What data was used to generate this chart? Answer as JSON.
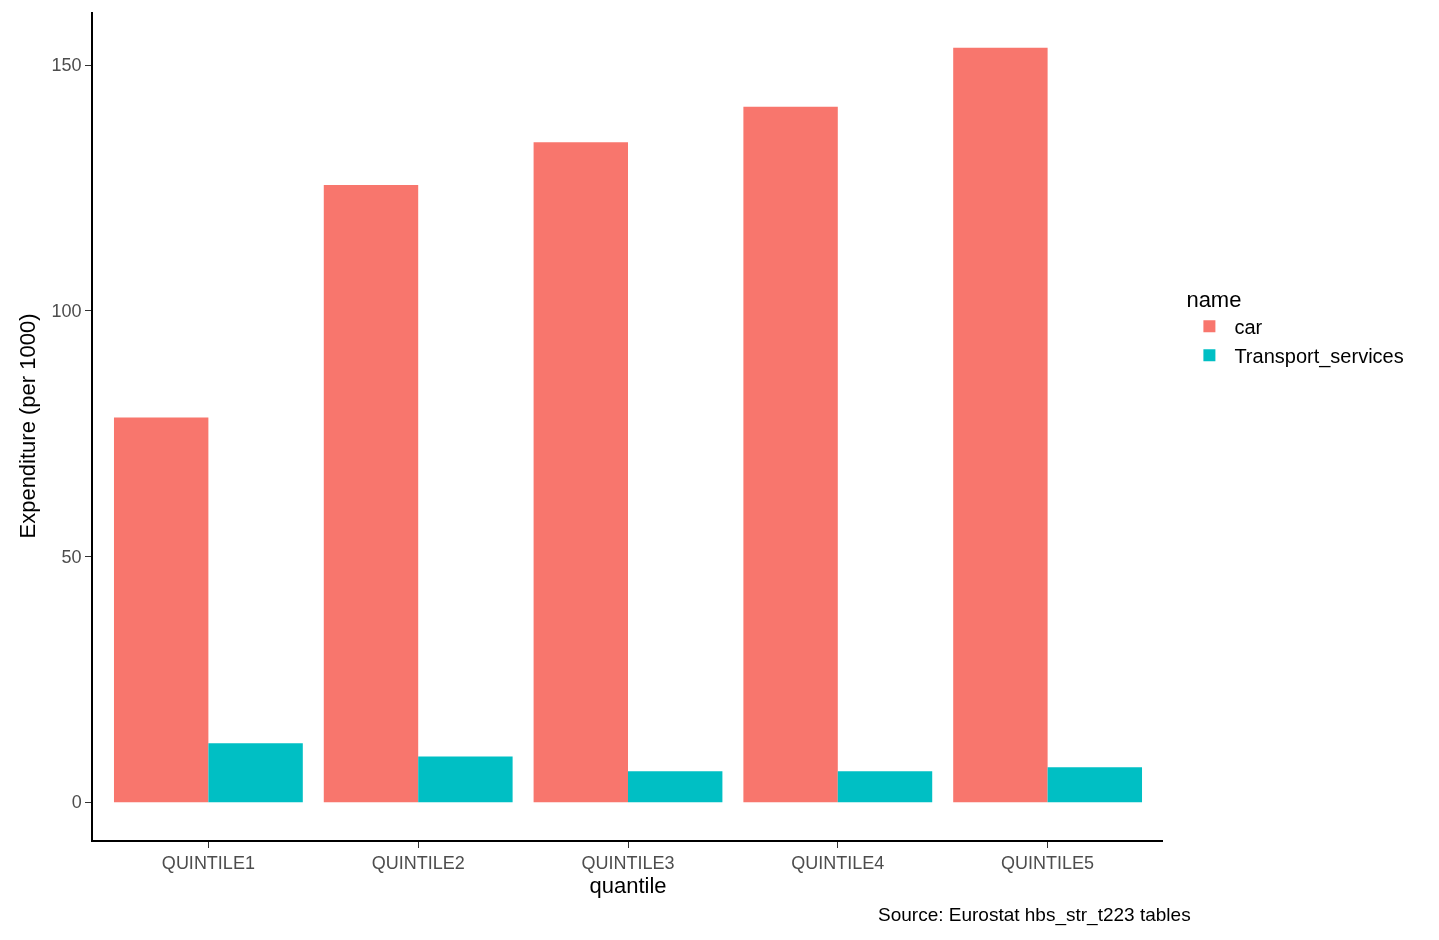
{
  "chart_data": {
    "type": "bar",
    "xlabel": "quantile",
    "ylabel": "Expenditure (per 1000)",
    "legend_title": "name",
    "categories": [
      "QUINTILE1",
      "QUINTILE2",
      "QUINTILE3",
      "QUINTILE4",
      "QUINTILE5"
    ],
    "series": [
      {
        "name": "car",
        "color": "#f8766d",
        "values": [
          78.3,
          125.6,
          134.3,
          141.5,
          153.5
        ]
      },
      {
        "name": "Transport_services",
        "color": "#00bfc4",
        "values": [
          12.0,
          9.3,
          6.3,
          6.3,
          7.1
        ]
      }
    ],
    "ylim": [
      -7.7,
      160.8
    ],
    "yticks": [
      0,
      50,
      100,
      150
    ],
    "grid": false,
    "legend": "right",
    "annotations": [
      "Source: Eurostat hbs_str_t223 tables"
    ]
  }
}
